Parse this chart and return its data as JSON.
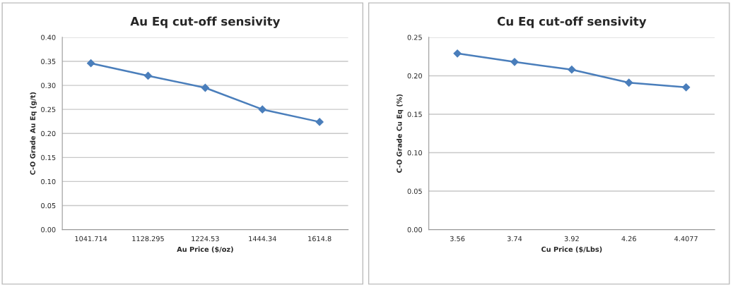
{
  "chart_data": [
    {
      "type": "line",
      "title": "Au Eq cut-off sensivity",
      "xlabel": "Au Price ($/oz)",
      "ylabel": "C-O Grade Au Eq (g/t)",
      "categories": [
        "1041.714",
        "1128.295",
        "1224.53",
        "1444.34",
        "1614.8"
      ],
      "series": [
        {
          "color": "#4a7ebb",
          "values": [
            0.346,
            0.32,
            0.295,
            0.25,
            0.224
          ]
        }
      ],
      "ylim": [
        0,
        0.4
      ],
      "yticks": [
        {
          "value": 0,
          "label": "0.00"
        },
        {
          "value": 0.05,
          "label": "0.05"
        },
        {
          "value": 0.1,
          "label": "0.10"
        },
        {
          "value": 0.15,
          "label": "0.15"
        },
        {
          "value": 0.2,
          "label": "0.20"
        },
        {
          "value": 0.25,
          "label": "0.25"
        },
        {
          "value": 0.3,
          "label": "0.30"
        },
        {
          "value": 0.35,
          "label": "0.35"
        },
        {
          "value": 0.4,
          "label": "0.40"
        }
      ],
      "grid": "y",
      "marker": "diamond",
      "line_style": "solid"
    },
    {
      "type": "line",
      "title": "Cu Eq cut-off sensivity",
      "xlabel": "Cu Price ($/Lbs)",
      "ylabel": "C-O Grade Cu Eq (%)",
      "categories": [
        "3.56",
        "3.74",
        "3.92",
        "4.26",
        "4.4077"
      ],
      "series": [
        {
          "color": "#4a7ebb",
          "values": [
            0.229,
            0.218,
            0.208,
            0.191,
            0.185
          ]
        }
      ],
      "ylim": [
        0,
        0.25
      ],
      "yticks": [
        {
          "value": 0,
          "label": "0.00"
        },
        {
          "value": 0.05,
          "label": "0.05"
        },
        {
          "value": 0.1,
          "label": "0.10"
        },
        {
          "value": 0.15,
          "label": "0.15"
        },
        {
          "value": 0.2,
          "label": "0.20"
        },
        {
          "value": 0.25,
          "label": "0.25"
        }
      ],
      "grid": "y",
      "marker": "diamond",
      "line_style": "solid"
    }
  ]
}
